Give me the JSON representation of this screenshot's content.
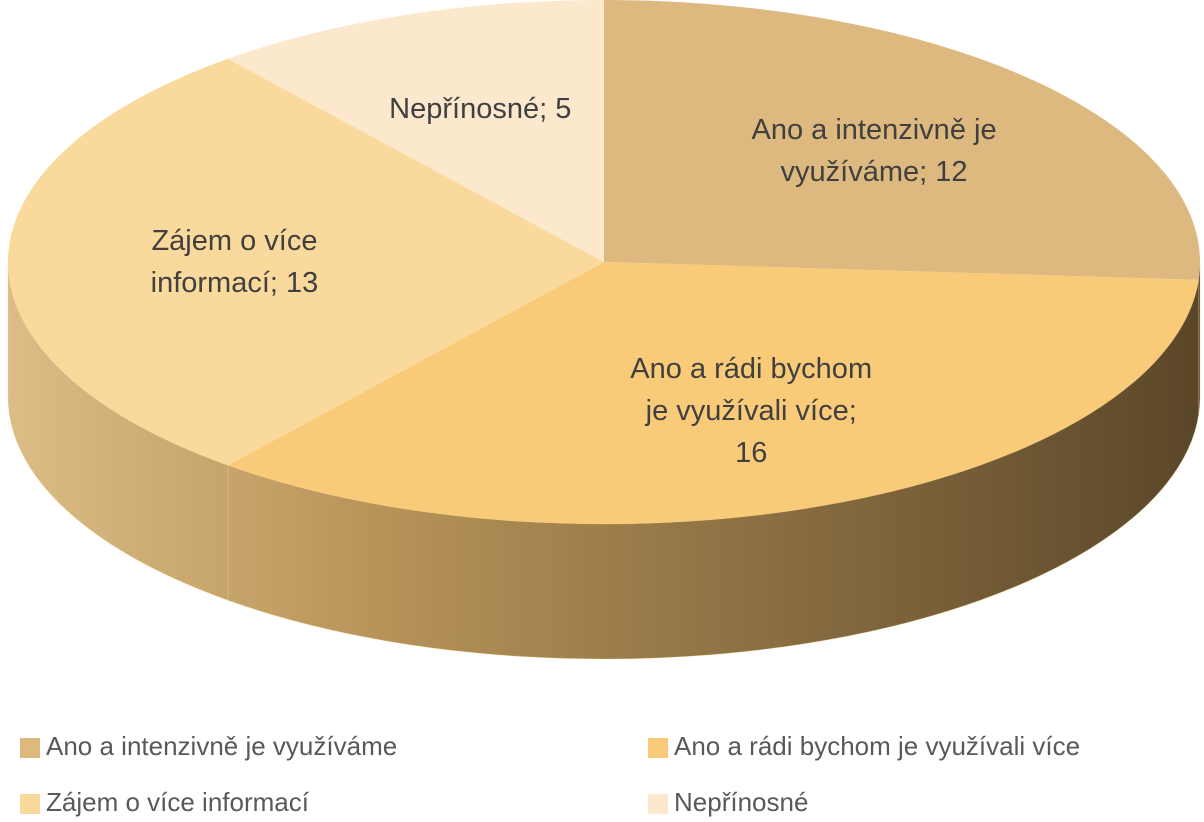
{
  "chart_data": {
    "type": "pie",
    "categories": [
      "Ano a intenzivně je využíváme",
      "Ano a rádi bychom je využívali více",
      "Zájem o více informací",
      "Nepřínosné"
    ],
    "values": [
      12,
      16,
      13,
      5
    ],
    "value_labels": [
      "Ano a intenzivně je využíváme; 12",
      "Ano a rádi bychom je využívali více; 16",
      "Zájem o více informací; 13",
      "Nepřínosné; 5"
    ],
    "colors": [
      "#ddb97f",
      "#f9cb78",
      "#fad99c",
      "#fce8cd"
    ],
    "legend": "bottom"
  }
}
